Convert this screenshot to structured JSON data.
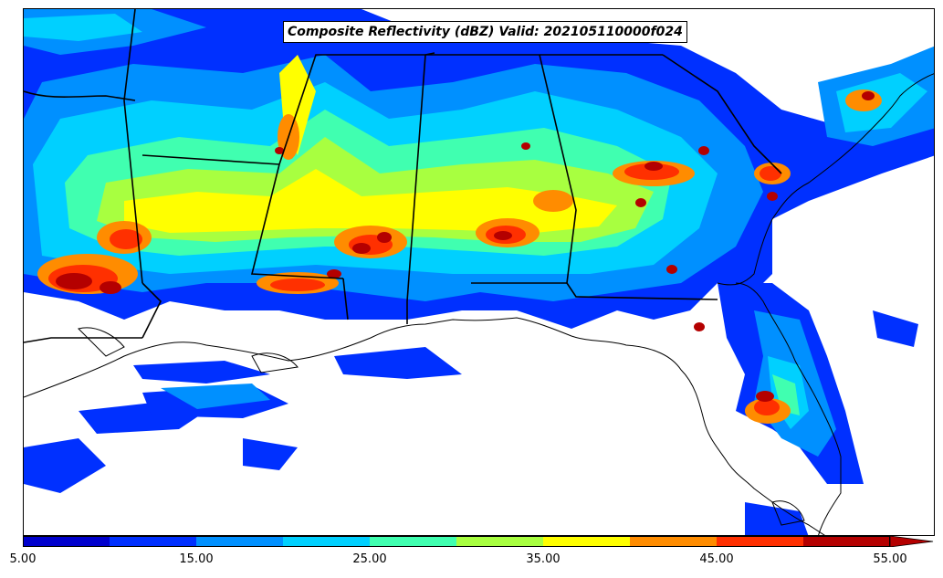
{
  "title": "Composite Reflectivity (dBZ) Valid: 202105110000f024",
  "colorbar": {
    "tick_labels": [
      "5.00",
      "15.00",
      "25.00",
      "35.00",
      "45.00",
      "55.00"
    ],
    "levels": [
      5,
      10,
      15,
      20,
      25,
      30,
      35,
      40,
      45,
      50,
      55
    ],
    "colors": [
      "#0000cd",
      "#0030ff",
      "#0090ff",
      "#00d0ff",
      "#40ffb0",
      "#a8ff40",
      "#ffff00",
      "#ff8c00",
      "#ff3000",
      "#b40000"
    ],
    "extend": "max"
  },
  "map": {
    "region": "Southeastern United States",
    "boundaries": [
      "state",
      "coastline"
    ]
  }
}
